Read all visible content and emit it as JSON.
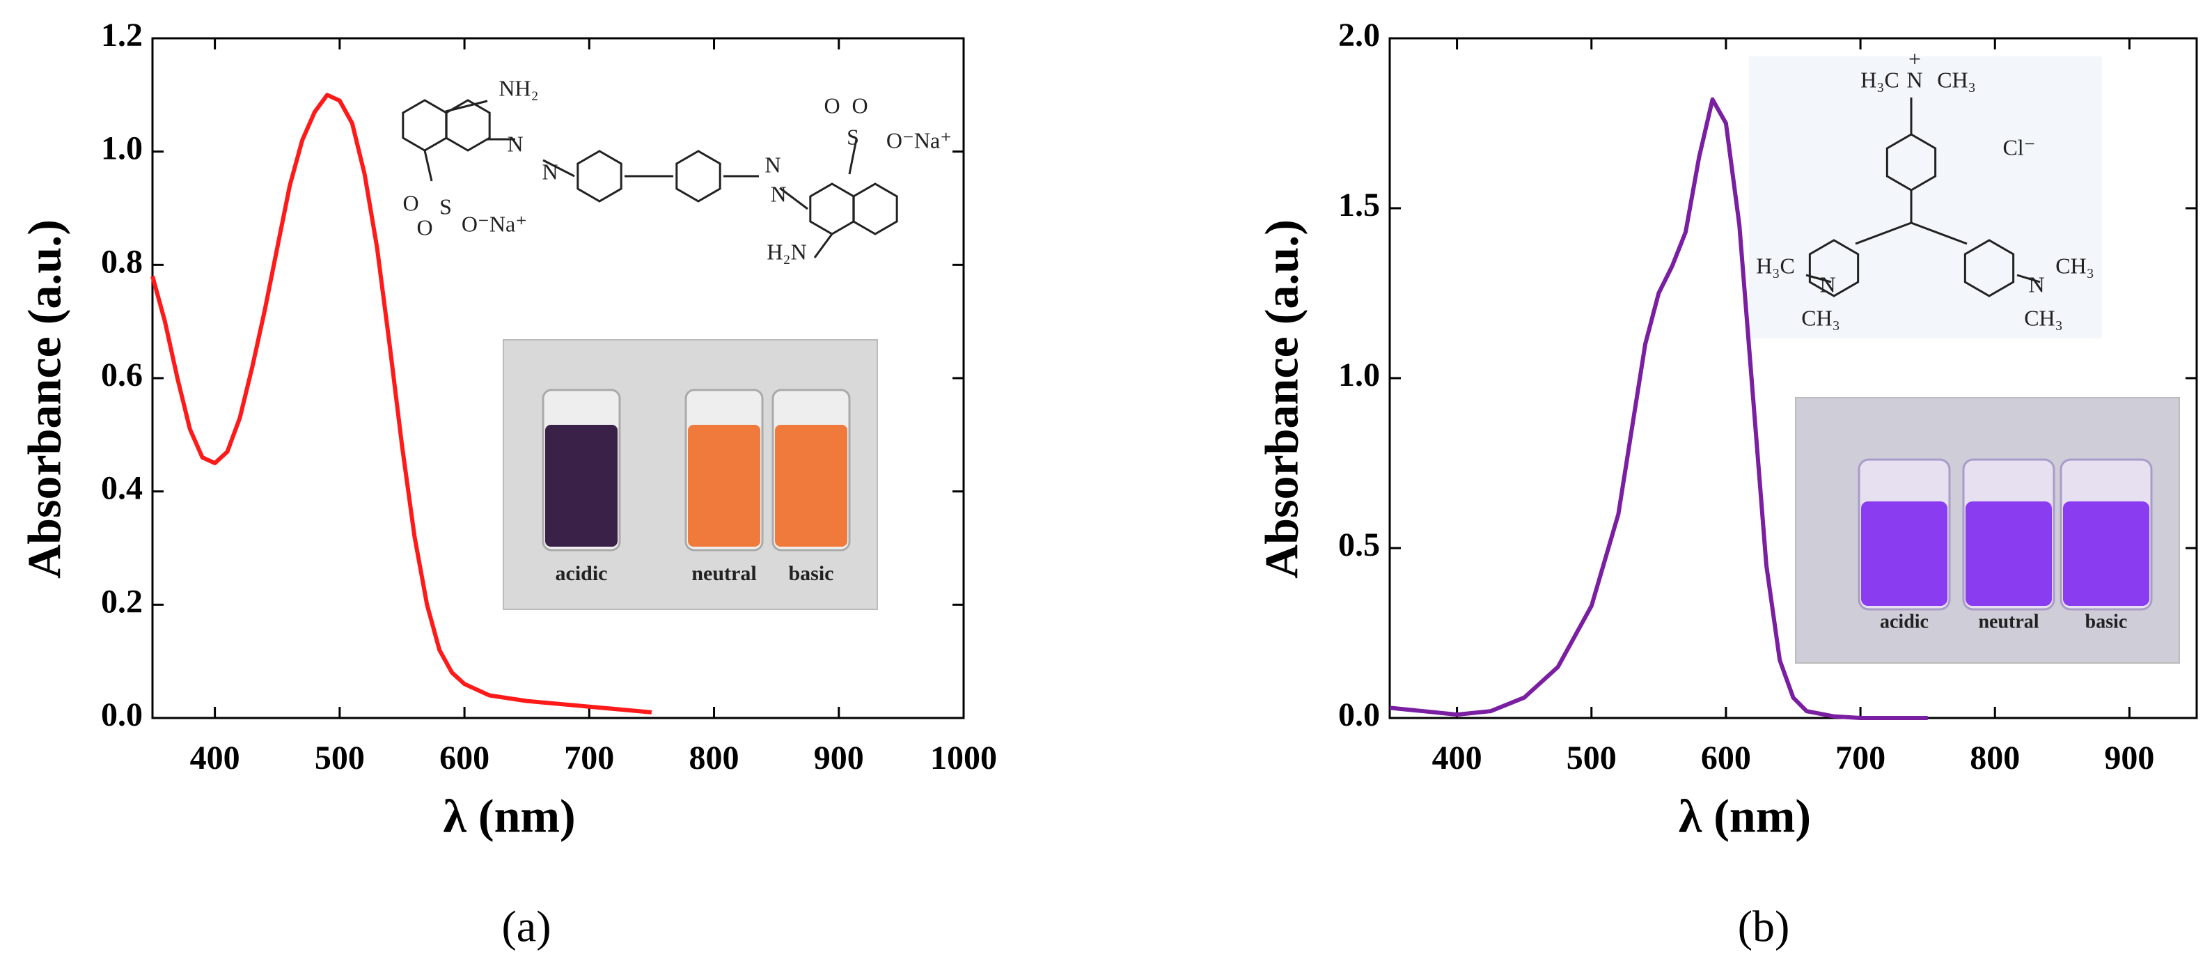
{
  "chart_data": [
    {
      "type": "line",
      "caption": "(a)",
      "xlabel": "λ (nm)",
      "ylabel": "Absorbance (a.u.)",
      "xlim": [
        350,
        1000
      ],
      "xticks": [
        400,
        500,
        600,
        700,
        800,
        900,
        1000
      ],
      "ylim": [
        0,
        1.2
      ],
      "yticks": [
        {
          "value": 0,
          "label": "0.0"
        },
        0.2,
        0.4,
        0.6,
        0.8,
        {
          "value": 1,
          "label": "1.0"
        },
        1.2
      ],
      "color": "#ff1a1a",
      "x": [
        350,
        360,
        370,
        380,
        390,
        400,
        410,
        420,
        430,
        440,
        450,
        460,
        470,
        480,
        490,
        500,
        510,
        520,
        530,
        540,
        550,
        560,
        570,
        580,
        590,
        600,
        620,
        650,
        700,
        750
      ],
      "values": [
        0.78,
        0.7,
        0.6,
        0.51,
        0.46,
        0.45,
        0.47,
        0.53,
        0.62,
        0.72,
        0.83,
        0.94,
        1.02,
        1.07,
        1.1,
        1.09,
        1.05,
        0.96,
        0.83,
        0.66,
        0.48,
        0.32,
        0.2,
        0.12,
        0.08,
        0.06,
        0.04,
        0.03,
        0.02,
        0.01
      ],
      "structure_labels": [
        "NH₂",
        "N",
        "N",
        "N",
        "N",
        "O",
        "O",
        "S",
        "O⁻Na⁺",
        "O",
        "O",
        "S",
        "O⁻Na⁺",
        "H₂N"
      ],
      "inset_labels": [
        "acidic",
        "neutral",
        "basic"
      ]
    },
    {
      "type": "line",
      "caption": "(b)",
      "xlabel": "λ (nm)",
      "ylabel": "Absorbance (a.u.)",
      "xlim": [
        350,
        950
      ],
      "xticks": [
        400,
        500,
        600,
        700,
        800,
        900
      ],
      "ylim": [
        0,
        2
      ],
      "yticks": [
        {
          "value": 0,
          "label": "0.0"
        },
        0.5,
        {
          "value": 1,
          "label": "1.0"
        },
        1.5,
        {
          "value": 2,
          "label": "2.0"
        }
      ],
      "color": "#7a1fa2",
      "x": [
        350,
        375,
        400,
        425,
        450,
        475,
        500,
        520,
        530,
        540,
        550,
        560,
        570,
        580,
        590,
        600,
        610,
        620,
        630,
        640,
        650,
        660,
        680,
        700,
        750
      ],
      "values": [
        0.03,
        0.02,
        0.01,
        0.02,
        0.06,
        0.15,
        0.33,
        0.6,
        0.85,
        1.1,
        1.25,
        1.33,
        1.43,
        1.65,
        1.82,
        1.75,
        1.45,
        0.95,
        0.45,
        0.17,
        0.06,
        0.02,
        0.005,
        0,
        0
      ],
      "structure_labels": [
        "H₃C",
        "N",
        "+",
        "CH₃",
        "Cl⁻",
        "H₃C",
        "N",
        "CH₃",
        "N",
        "CH₃",
        "CH₃"
      ],
      "inset_labels": [
        "acidic",
        "neutral",
        "basic"
      ]
    }
  ]
}
